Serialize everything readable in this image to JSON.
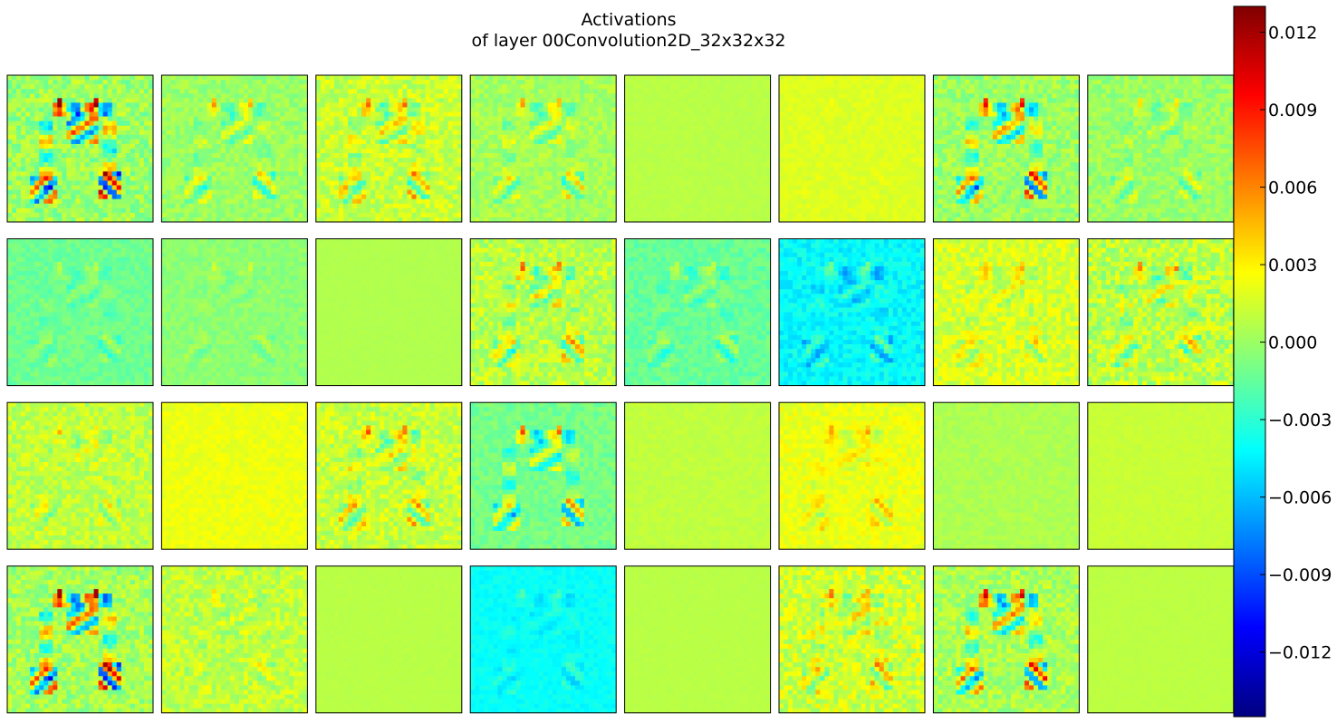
{
  "figure": {
    "title_lines": [
      "Activations",
      "of layer 00Convolution2D_32x32x32"
    ]
  },
  "chart_data": {
    "type": "heatmap",
    "title": "Activations\nof layer 00Convolution2D_32x32x32",
    "xlabel": "",
    "ylabel": "",
    "grid": false,
    "legend": "none",
    "layout": {
      "rows": 4,
      "cols": 8
    },
    "map_resolution": [
      32,
      32
    ],
    "colormap": "jet",
    "colorbar": {
      "vmin": -0.0145,
      "vmax": 0.013,
      "ticks": [
        0.012,
        0.009,
        0.006,
        0.003,
        0.0,
        -0.003,
        -0.006,
        -0.009,
        -0.012
      ],
      "tick_labels": [
        "0.012",
        "0.009",
        "0.006",
        "0.003",
        "0.000",
        "−0.003",
        "−0.006",
        "−0.009",
        "−0.012"
      ]
    },
    "maps": [
      {
        "index": 0,
        "baseline": 0.0,
        "contrast": 1.0,
        "noise": 0.0016,
        "min": -0.0145,
        "max": 0.0125
      },
      {
        "index": 1,
        "baseline": 0.0,
        "contrast": 0.55,
        "noise": 0.001,
        "min": -0.008,
        "max": 0.006
      },
      {
        "index": 2,
        "baseline": 0.0012,
        "contrast": 0.6,
        "noise": 0.0014,
        "min": -0.009,
        "max": 0.007
      },
      {
        "index": 3,
        "baseline": 0.0003,
        "contrast": 0.55,
        "noise": 0.001,
        "min": -0.008,
        "max": 0.007
      },
      {
        "index": 4,
        "baseline": 0.0008,
        "contrast": 0.05,
        "noise": 0.0002,
        "min": 0.0003,
        "max": 0.0012
      },
      {
        "index": 5,
        "baseline": 0.0018,
        "contrast": 0.18,
        "noise": 0.0004,
        "min": -0.0005,
        "max": 0.004
      },
      {
        "index": 6,
        "baseline": 0.0,
        "contrast": 0.85,
        "noise": 0.0013,
        "min": -0.013,
        "max": 0.01
      },
      {
        "index": 7,
        "baseline": 0.0,
        "contrast": 0.45,
        "noise": 0.001,
        "min": -0.006,
        "max": 0.006
      },
      {
        "index": 8,
        "baseline": -0.0012,
        "contrast": 0.45,
        "noise": 0.0007,
        "min": -0.008,
        "max": 0.001
      },
      {
        "index": 9,
        "baseline": -0.0004,
        "contrast": 0.3,
        "noise": 0.0006,
        "min": -0.005,
        "max": 0.003
      },
      {
        "index": 10,
        "baseline": 0.0006,
        "contrast": 0.03,
        "noise": 0.0001,
        "min": 0.0003,
        "max": 0.001
      },
      {
        "index": 11,
        "baseline": 0.0008,
        "contrast": 0.6,
        "noise": 0.0015,
        "min": -0.008,
        "max": 0.008
      },
      {
        "index": 12,
        "baseline": -0.0014,
        "contrast": 0.55,
        "noise": 0.0008,
        "min": -0.009,
        "max": 0.001
      },
      {
        "index": 13,
        "baseline": -0.0042,
        "contrast": 0.7,
        "noise": 0.001,
        "min": -0.011,
        "max": -0.001
      },
      {
        "index": 14,
        "baseline": 0.0016,
        "contrast": 0.45,
        "noise": 0.0013,
        "min": -0.003,
        "max": 0.008
      },
      {
        "index": 15,
        "baseline": 0.0008,
        "contrast": 0.55,
        "noise": 0.0017,
        "min": -0.006,
        "max": 0.008
      },
      {
        "index": 16,
        "baseline": 0.001,
        "contrast": 0.4,
        "noise": 0.0013,
        "min": -0.005,
        "max": 0.006
      },
      {
        "index": 17,
        "baseline": 0.0022,
        "contrast": 0.15,
        "noise": 0.0005,
        "min": 0.0005,
        "max": 0.004
      },
      {
        "index": 18,
        "baseline": 0.0012,
        "contrast": 0.6,
        "noise": 0.0014,
        "min": -0.008,
        "max": 0.008
      },
      {
        "index": 19,
        "baseline": -0.001,
        "contrast": 0.75,
        "noise": 0.0008,
        "min": -0.011,
        "max": 0.008
      },
      {
        "index": 20,
        "baseline": 0.001,
        "contrast": 0.08,
        "noise": 0.0003,
        "min": 0.0,
        "max": 0.002
      },
      {
        "index": 21,
        "baseline": 0.0022,
        "contrast": 0.45,
        "noise": 0.0008,
        "min": -0.003,
        "max": 0.008
      },
      {
        "index": 22,
        "baseline": 0.0005,
        "contrast": 0.12,
        "noise": 0.0004,
        "min": -0.002,
        "max": 0.002
      },
      {
        "index": 23,
        "baseline": 0.0012,
        "contrast": 0.04,
        "noise": 0.0002,
        "min": 0.0008,
        "max": 0.0018
      },
      {
        "index": 24,
        "baseline": 0.0002,
        "contrast": 1.0,
        "noise": 0.0015,
        "min": -0.014,
        "max": 0.012
      },
      {
        "index": 25,
        "baseline": 0.001,
        "contrast": 0.35,
        "noise": 0.0013,
        "min": -0.003,
        "max": 0.006
      },
      {
        "index": 26,
        "baseline": 0.0008,
        "contrast": 0.0,
        "noise": 0.0001,
        "min": 0.0006,
        "max": 0.001
      },
      {
        "index": 27,
        "baseline": -0.004,
        "contrast": 0.5,
        "noise": 0.0005,
        "min": -0.009,
        "max": -0.002
      },
      {
        "index": 28,
        "baseline": 0.0008,
        "contrast": 0.0,
        "noise": 0.0001,
        "min": 0.0006,
        "max": 0.001
      },
      {
        "index": 29,
        "baseline": 0.0014,
        "contrast": 0.55,
        "noise": 0.0017,
        "min": -0.006,
        "max": 0.008
      },
      {
        "index": 30,
        "baseline": 0.0004,
        "contrast": 0.85,
        "noise": 0.0014,
        "min": -0.013,
        "max": 0.011
      },
      {
        "index": 31,
        "baseline": 0.0009,
        "contrast": 0.02,
        "noise": 0.0001,
        "min": 0.0006,
        "max": 0.0012
      }
    ]
  }
}
